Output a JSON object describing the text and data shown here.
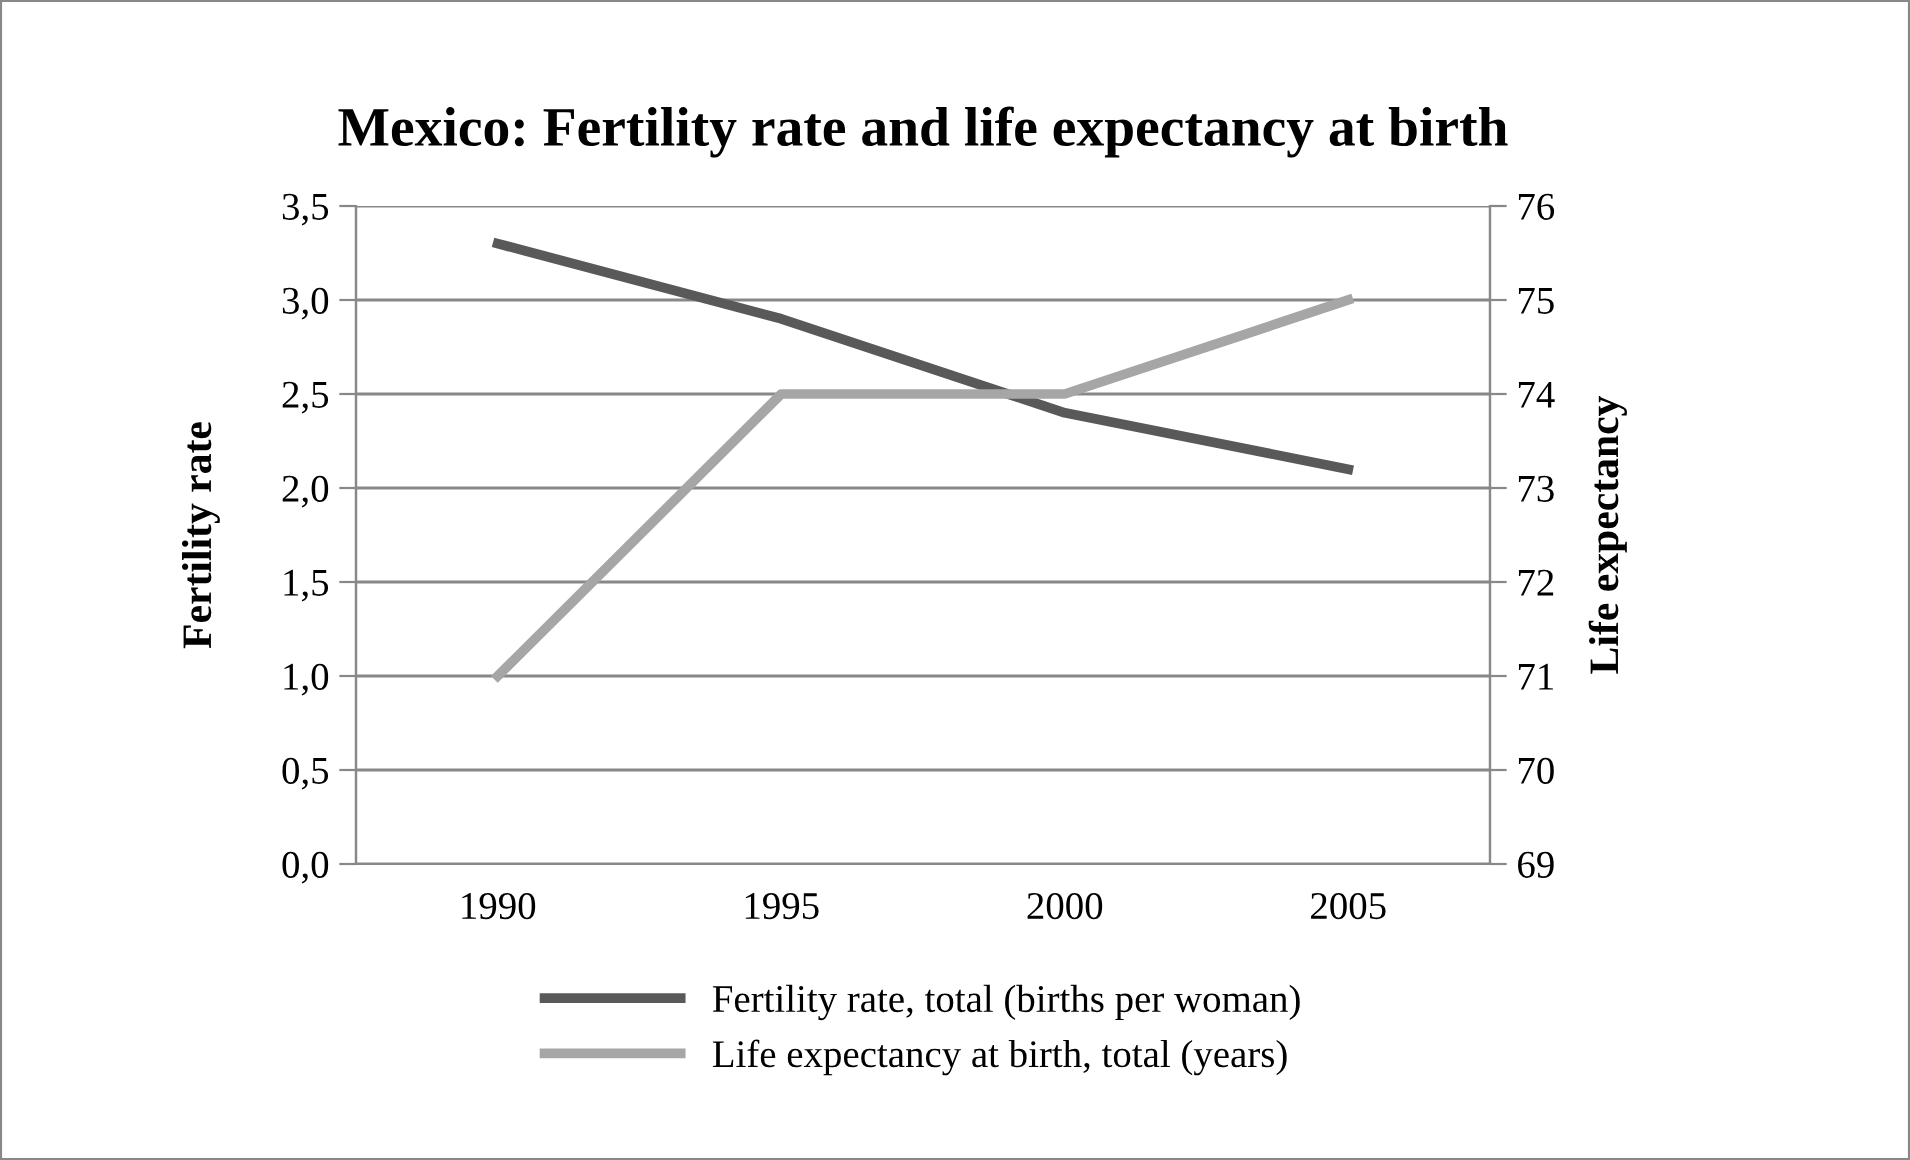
{
  "chart_data": {
    "type": "line",
    "title": "Mexico: Fertility rate and life expectancy at birth",
    "ylabel": "Fertility rate",
    "y2label": "Life expectancy",
    "categories": [
      "1990",
      "1995",
      "2000",
      "2005"
    ],
    "series": [
      {
        "name": "Fertility rate, total (births per woman)",
        "color": "#595959",
        "values": [
          3.3,
          2.9,
          2.4,
          2.1
        ]
      },
      {
        "name": "Life expectancy at birth, total (years)",
        "color": "#a6a6a6",
        "values": [
          71,
          74,
          74,
          75
        ],
        "axis": "y2"
      }
    ],
    "ylim": [
      0,
      3.5
    ],
    "yticks": [
      {
        "value": 0,
        "label": "0,0"
      },
      {
        "value": 0.5,
        "label": "0,5"
      },
      {
        "value": 1,
        "label": "1,0"
      },
      {
        "value": 1.5,
        "label": "1,5"
      },
      {
        "value": 2,
        "label": "2,0"
      },
      {
        "value": 2.5,
        "label": "2,5"
      },
      {
        "value": 3,
        "label": "3,0"
      },
      {
        "value": 3.5,
        "label": "3,5"
      }
    ],
    "y2lim": [
      69,
      76
    ],
    "y2ticks": [
      69,
      70,
      71,
      72,
      73,
      74,
      75,
      76
    ],
    "grid": "y",
    "legend": "bottom",
    "marker": "none",
    "line_style": "solid"
  }
}
